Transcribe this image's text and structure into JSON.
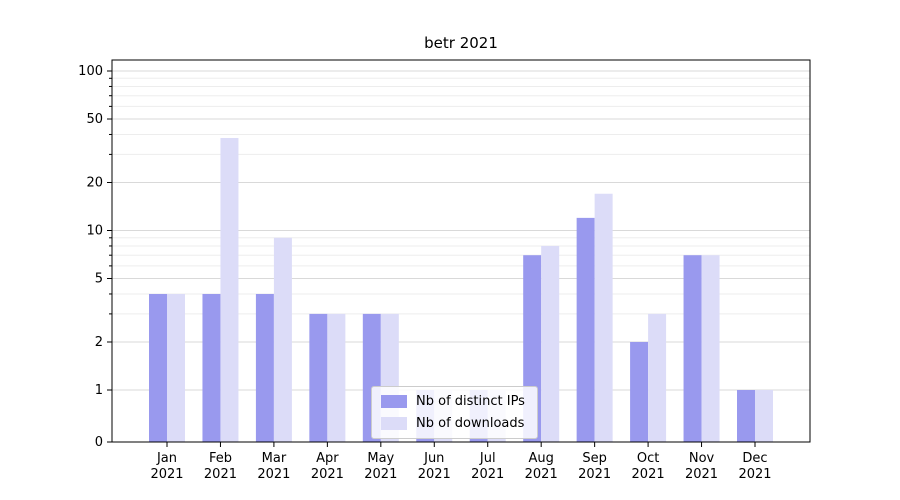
{
  "chart_data": {
    "type": "bar",
    "title": "betr 2021",
    "categories": [
      "Jan",
      "Feb",
      "Mar",
      "Apr",
      "May",
      "Jun",
      "Jul",
      "Aug",
      "Sep",
      "Oct",
      "Nov",
      "Dec"
    ],
    "x_tick_line2": "2021",
    "series": [
      {
        "name": "Nb of distinct IPs",
        "color": "#9999ee",
        "values": [
          4,
          4,
          4,
          3,
          3,
          1,
          1,
          7,
          12,
          2,
          7,
          1
        ]
      },
      {
        "name": "Nb of downloads",
        "color": "#dcdcf8",
        "values": [
          4,
          38,
          9,
          3,
          3,
          1,
          1,
          8,
          17,
          3,
          7,
          1
        ]
      }
    ],
    "yscale": "log",
    "ylim": [
      0,
      100
    ],
    "yticks": [
      0,
      1,
      2,
      5,
      10,
      20,
      50,
      100
    ],
    "minor_yticks": [
      3,
      4,
      6,
      7,
      8,
      9,
      30,
      40,
      60,
      70,
      80,
      90
    ],
    "grid": true,
    "legend_position": "lower center"
  },
  "colors": {
    "grid_major": "#d9d9d9",
    "grid_minor": "#ededed",
    "axis": "#000000",
    "background": "#ffffff"
  }
}
